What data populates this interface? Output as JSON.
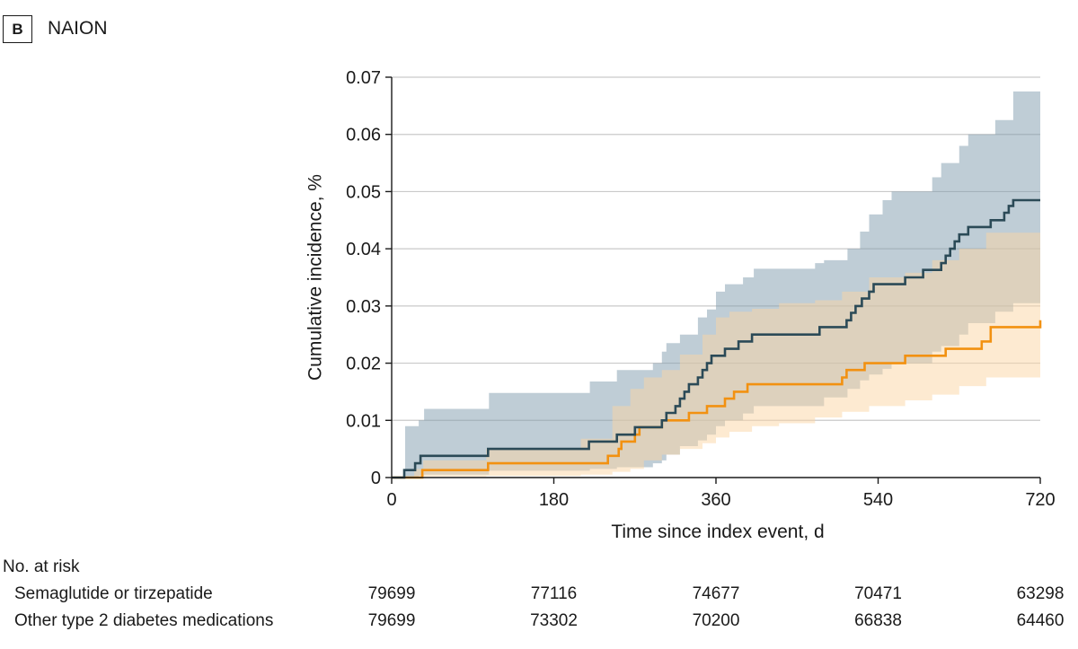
{
  "panel": {
    "badge": "B",
    "title": "NAION"
  },
  "chart_data": {
    "type": "line",
    "title": "NAION",
    "xlabel": "Time since index event, d",
    "ylabel": "Cumulative incidence, %",
    "xlim": [
      0,
      720
    ],
    "ylim": [
      0,
      0.07
    ],
    "x_ticks": [
      0,
      180,
      360,
      540,
      720
    ],
    "y_ticks": [
      0,
      0.01,
      0.02,
      0.03,
      0.04,
      0.05,
      0.06,
      0.07
    ],
    "y_tick_labels": [
      "0",
      "0.01",
      "0.02",
      "0.03",
      "0.04",
      "0.05",
      "0.06",
      "0.07"
    ],
    "grid": "horizontal",
    "series": [
      {
        "name": "Semaglutide or tirzepatide",
        "color": "#2b4a57",
        "band_color": "#7f9cad",
        "step": true,
        "x": [
          0,
          4,
          14,
          21,
          26,
          32,
          100,
          107,
          219,
          232,
          250,
          270,
          275,
          300,
          305,
          315,
          320,
          325,
          330,
          335,
          340,
          345,
          350,
          355,
          360,
          370,
          385,
          400,
          415,
          470,
          475,
          490,
          505,
          510,
          515,
          522,
          530,
          535,
          540,
          565,
          570,
          580,
          590,
          600,
          605,
          610,
          615,
          620,
          625,
          630,
          640,
          650,
          665,
          680,
          685,
          690,
          695,
          720
        ],
        "y": [
          0,
          0,
          0.0013,
          0.0013,
          0.0025,
          0.0038,
          0.0038,
          0.005,
          0.0063,
          0.0063,
          0.0075,
          0.0088,
          0.0088,
          0.01,
          0.0113,
          0.0125,
          0.0138,
          0.015,
          0.0163,
          0.0163,
          0.0175,
          0.0188,
          0.02,
          0.0213,
          0.0213,
          0.0225,
          0.0238,
          0.025,
          0.025,
          0.025,
          0.0263,
          0.0263,
          0.0275,
          0.0288,
          0.03,
          0.0313,
          0.0325,
          0.0338,
          0.0338,
          0.0338,
          0.035,
          0.035,
          0.0363,
          0.0363,
          0.0363,
          0.0375,
          0.0388,
          0.04,
          0.0413,
          0.0425,
          0.0438,
          0.0438,
          0.045,
          0.0463,
          0.0475,
          0.0485,
          0.0485,
          0.0485
        ],
        "ci": {
          "x": [
            0,
            15,
            30,
            36,
            108,
            220,
            250,
            290,
            300,
            305,
            320,
            340,
            350,
            360,
            370,
            390,
            402,
            470,
            480,
            506,
            520,
            530,
            545,
            555,
            600,
            610,
            630,
            640,
            670,
            690,
            720
          ],
          "lower": [
            0,
            0,
            0.0003,
            0.0005,
            0.0012,
            0.0015,
            0.0018,
            0.0025,
            0.003,
            0.004,
            0.0055,
            0.0065,
            0.0075,
            0.009,
            0.01,
            0.0112,
            0.0125,
            0.0125,
            0.014,
            0.0155,
            0.017,
            0.018,
            0.019,
            0.02,
            0.022,
            0.023,
            0.025,
            0.027,
            0.029,
            0.0305,
            0.0305
          ],
          "upper": [
            0,
            0.009,
            0.01,
            0.012,
            0.0148,
            0.0168,
            0.0188,
            0.02,
            0.022,
            0.0235,
            0.025,
            0.028,
            0.0294,
            0.0325,
            0.0338,
            0.035,
            0.0365,
            0.0375,
            0.038,
            0.04,
            0.043,
            0.046,
            0.0485,
            0.05,
            0.0525,
            0.055,
            0.058,
            0.06,
            0.0625,
            0.0675,
            0.0675
          ]
        }
      },
      {
        "name": "Other type 2 diabetes medications",
        "color": "#f29111",
        "band_color": "#fbd6a4",
        "step": true,
        "x": [
          0,
          25,
          34,
          107,
          210,
          240,
          250,
          252,
          255,
          270,
          275,
          295,
          300,
          330,
          350,
          370,
          380,
          395,
          400,
          500,
          505,
          525,
          540,
          545,
          570,
          595,
          615,
          630,
          655,
          665,
          720
        ],
        "y": [
          0,
          0,
          0.0013,
          0.0025,
          0.0025,
          0.0038,
          0.0038,
          0.005,
          0.0063,
          0.0075,
          0.0088,
          0.0088,
          0.01,
          0.0113,
          0.0125,
          0.0138,
          0.015,
          0.0163,
          0.0163,
          0.0175,
          0.0188,
          0.02,
          0.02,
          0.02,
          0.0213,
          0.0213,
          0.0225,
          0.0225,
          0.0238,
          0.0263,
          0.0275
        ],
        "ci": {
          "x": [
            0,
            25,
            35,
            105,
            210,
            245,
            265,
            280,
            300,
            320,
            345,
            360,
            375,
            400,
            430,
            470,
            500,
            530,
            570,
            600,
            630,
            660,
            720
          ],
          "lower": [
            0,
            0,
            0.0002,
            0.0003,
            0.0005,
            0.001,
            0.0015,
            0.003,
            0.004,
            0.005,
            0.006,
            0.007,
            0.008,
            0.009,
            0.0095,
            0.0105,
            0.0115,
            0.0125,
            0.0135,
            0.0145,
            0.016,
            0.0175,
            0.0175
          ],
          "upper": [
            0,
            0.0015,
            0.003,
            0.005,
            0.0068,
            0.0125,
            0.0155,
            0.0175,
            0.0188,
            0.0215,
            0.025,
            0.028,
            0.029,
            0.0295,
            0.0305,
            0.031,
            0.0325,
            0.035,
            0.0358,
            0.038,
            0.04,
            0.0428,
            0.0428
          ]
        }
      }
    ]
  },
  "risk_table": {
    "heading": "No. at risk",
    "times": [
      0,
      180,
      360,
      540,
      720
    ],
    "rows": [
      {
        "label": "Semaglutide or tirzepatide",
        "values": [
          "79699",
          "77116",
          "74677",
          "70471",
          "63298"
        ]
      },
      {
        "label": "Other type 2 diabetes medications",
        "values": [
          "79699",
          "73302",
          "70200",
          "66838",
          "64460"
        ]
      }
    ]
  }
}
